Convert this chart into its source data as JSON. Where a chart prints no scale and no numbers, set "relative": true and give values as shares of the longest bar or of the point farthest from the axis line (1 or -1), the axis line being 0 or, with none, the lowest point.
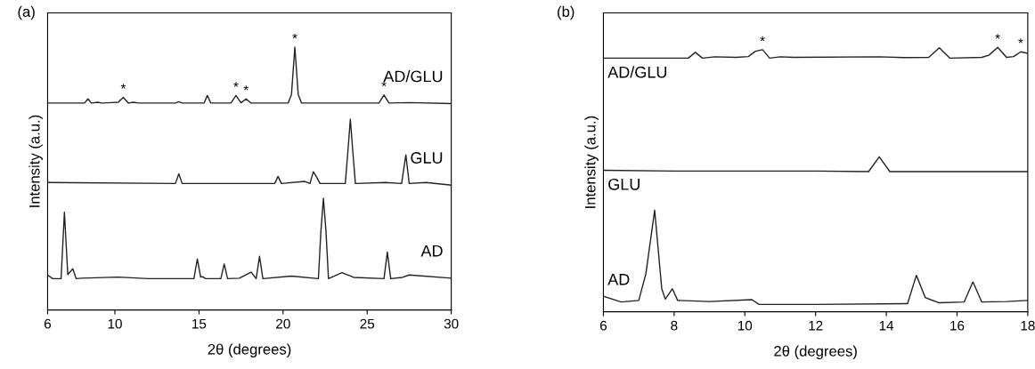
{
  "chart_data": [
    {
      "type": "line",
      "title": "(a)",
      "xlabel": "2θ (degrees)",
      "ylabel": "Intensity (a.u.)",
      "relative": true,
      "tick_labels": "x",
      "xlim": [
        6,
        30
      ],
      "xticks": [
        6,
        10,
        15,
        20,
        25,
        30
      ],
      "grid": false,
      "legend": false,
      "marker": "none",
      "line_style": "solid",
      "series": [
        {
          "name": "AD/GLU",
          "color": "#222222",
          "x": [
            6,
            8.2,
            8.4,
            8.6,
            9.0,
            9.2,
            9.8,
            10.2,
            10.5,
            10.8,
            11.1,
            11.4,
            13.6,
            13.8,
            14.0,
            15.3,
            15.5,
            15.7,
            16.9,
            17.2,
            17.5,
            17.8,
            18.1,
            20.3,
            20.5,
            20.7,
            20.9,
            21.1,
            25.7,
            26.0,
            26.3,
            27.5,
            30
          ],
          "values": [
            0.787,
            0.787,
            0.803,
            0.787,
            0.79,
            0.787,
            0.789,
            0.79,
            0.809,
            0.787,
            0.79,
            0.787,
            0.787,
            0.792,
            0.787,
            0.787,
            0.816,
            0.787,
            0.787,
            0.816,
            0.788,
            0.803,
            0.787,
            0.787,
            0.82,
            1.0,
            0.82,
            0.787,
            0.787,
            0.818,
            0.787,
            0.789,
            0.785
          ]
        },
        {
          "name": "GLU",
          "color": "#222222",
          "x": [
            6,
            13.6,
            13.8,
            14.0,
            19.5,
            19.7,
            19.9,
            21.3,
            21.6,
            21.8,
            22.0,
            22.2,
            23.7,
            23.85,
            24.0,
            24.15,
            24.3,
            26.1,
            27.05,
            27.3,
            27.5,
            28.5,
            30
          ],
          "values": [
            0.485,
            0.481,
            0.518,
            0.481,
            0.481,
            0.508,
            0.481,
            0.489,
            0.481,
            0.526,
            0.505,
            0.481,
            0.481,
            0.6,
            0.726,
            0.6,
            0.481,
            0.485,
            0.481,
            0.59,
            0.481,
            0.485,
            0.475
          ]
        },
        {
          "name": "AD",
          "color": "#222222",
          "x": [
            6,
            6.3,
            6.8,
            7.0,
            7.2,
            7.5,
            7.7,
            8.0,
            10.2,
            12,
            14.7,
            14.9,
            15.1,
            15.2,
            15.4,
            16.3,
            16.5,
            16.7,
            17.4,
            18.1,
            18.4,
            18.6,
            18.8,
            20.5,
            22.1,
            22.25,
            22.4,
            22.55,
            22.7,
            23.5,
            24.2,
            26.0,
            26.2,
            26.4,
            27.1,
            27.5,
            30
          ],
          "values": [
            0.133,
            0.119,
            0.119,
            0.372,
            0.135,
            0.157,
            0.119,
            0.121,
            0.125,
            0.119,
            0.119,
            0.194,
            0.125,
            0.127,
            0.119,
            0.119,
            0.175,
            0.119,
            0.121,
            0.144,
            0.119,
            0.204,
            0.119,
            0.129,
            0.119,
            0.3,
            0.425,
            0.3,
            0.119,
            0.142,
            0.124,
            0.119,
            0.22,
            0.119,
            0.124,
            0.133,
            0.121
          ]
        }
      ],
      "annotations": [
        {
          "text": "*",
          "x": 10.5,
          "y": 0.809
        },
        {
          "text": "*",
          "x": 17.2,
          "y": 0.816
        },
        {
          "text": "*",
          "x": 17.8,
          "y": 0.803
        },
        {
          "text": "*",
          "x": 20.7,
          "y": 1.0
        },
        {
          "text": "*",
          "x": 26.0,
          "y": 0.818
        }
      ]
    },
    {
      "type": "line",
      "title": "(b)",
      "xlabel": "2θ (degrees)",
      "ylabel": "Intensity (a.u.)",
      "relative": true,
      "tick_labels": "x",
      "xlim": [
        6,
        18
      ],
      "xticks": [
        6,
        8,
        10,
        12,
        14,
        16,
        18
      ],
      "grid": false,
      "legend": false,
      "marker": "none",
      "line_style": "solid",
      "series": [
        {
          "name": "AD/GLU",
          "color": "#222222",
          "x": [
            6,
            8.4,
            8.6,
            8.8,
            9.15,
            9.75,
            10.1,
            10.3,
            10.5,
            10.7,
            11.0,
            11.4,
            13.8,
            14.5,
            15.2,
            15.5,
            15.8,
            16.7,
            16.9,
            17.15,
            17.4,
            17.6,
            17.8,
            18
          ],
          "values": [
            0.959,
            0.959,
            0.981,
            0.959,
            0.964,
            0.962,
            0.965,
            0.985,
            0.991,
            0.959,
            0.964,
            0.962,
            0.964,
            0.961,
            0.962,
            0.998,
            0.959,
            0.962,
            0.97,
            1.0,
            0.962,
            0.965,
            0.983,
            0.977
          ]
        },
        {
          "name": "GLU",
          "color": "#222222",
          "x": [
            6,
            8,
            12,
            13.5,
            13.8,
            14.1,
            18
          ],
          "values": [
            0.535,
            0.532,
            0.532,
            0.53,
            0.586,
            0.53,
            0.53
          ]
        },
        {
          "name": "AD",
          "color": "#222222",
          "x": [
            6,
            6.5,
            7.0,
            7.2,
            7.45,
            7.65,
            7.75,
            7.95,
            8.1,
            9,
            10.2,
            10.4,
            12,
            14.6,
            14.85,
            15.1,
            15.25,
            15.5,
            16.2,
            16.45,
            16.7,
            17.4,
            18
          ],
          "values": [
            0.059,
            0.037,
            0.043,
            0.143,
            0.384,
            0.087,
            0.048,
            0.087,
            0.043,
            0.039,
            0.046,
            0.028,
            0.028,
            0.031,
            0.138,
            0.054,
            0.046,
            0.034,
            0.037,
            0.113,
            0.037,
            0.039,
            0.043
          ]
        }
      ],
      "annotations": [
        {
          "text": "*",
          "x": 10.5,
          "y": 0.991
        },
        {
          "text": "*",
          "x": 17.15,
          "y": 1.0
        },
        {
          "text": "*",
          "x": 17.8,
          "y": 0.983
        }
      ]
    }
  ]
}
